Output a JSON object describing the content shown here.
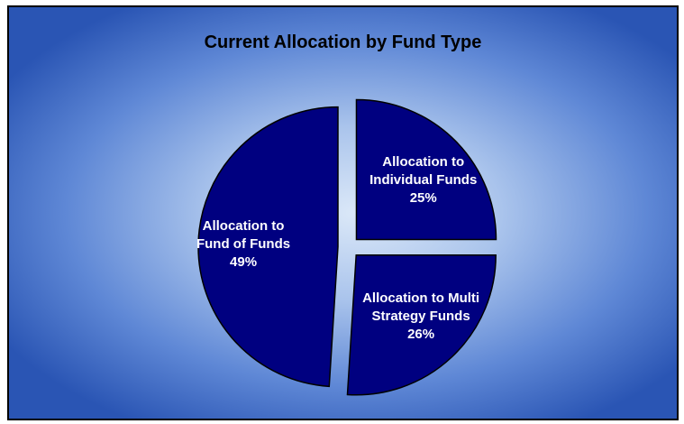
{
  "chart_data": {
    "type": "pie",
    "title": "Current Allocation by Fund Type",
    "categories": [
      "Allocation to Individual Funds",
      "Allocation to Multi Strategy Funds",
      "Allocation to Fund of Funds"
    ],
    "values": [
      25,
      26,
      49
    ],
    "value_labels": [
      "25%",
      "26%",
      "49%"
    ],
    "color": "#000080"
  }
}
